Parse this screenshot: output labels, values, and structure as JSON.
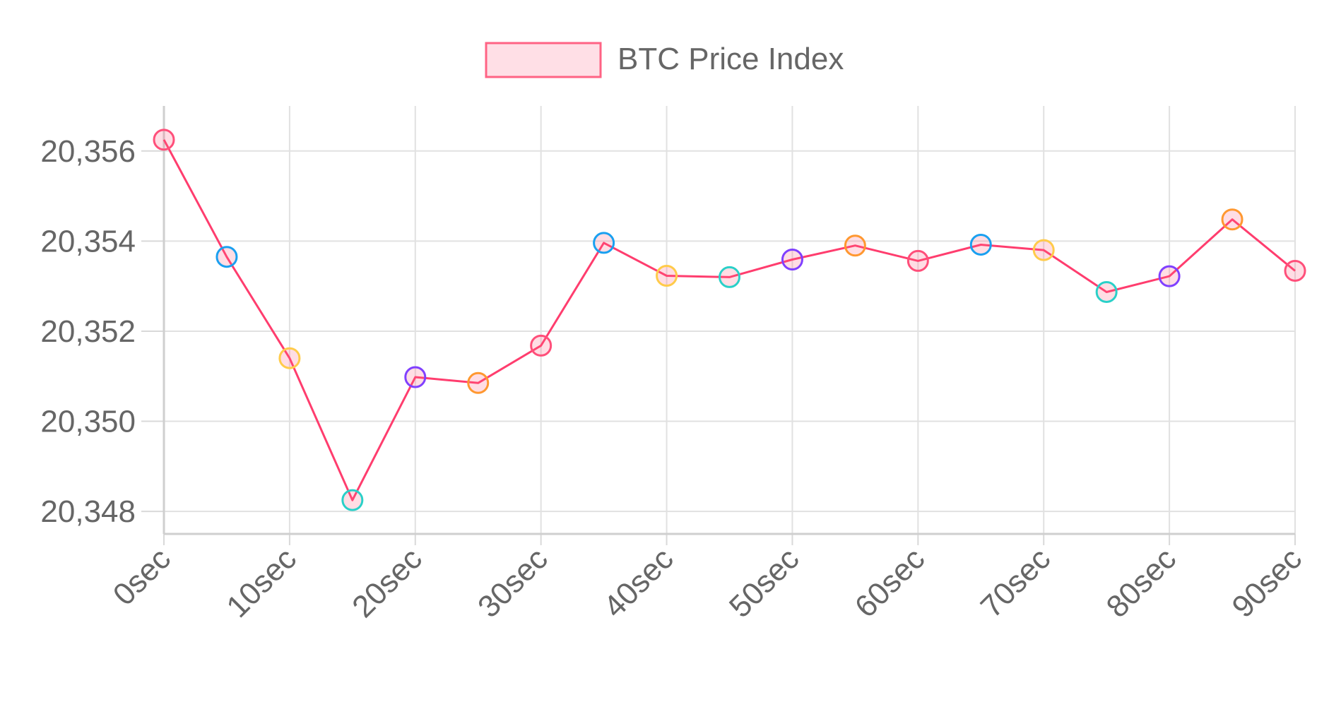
{
  "chart_data": {
    "type": "line",
    "legend": {
      "position": "top",
      "label": "BTC Price Index"
    },
    "x_tick_labels": [
      "0sec",
      "10sec",
      "20sec",
      "30sec",
      "40sec",
      "50sec",
      "60sec",
      "70sec",
      "80sec",
      "90sec"
    ],
    "y_tick_labels": [
      "20,356",
      "20,354",
      "20,352",
      "20,350",
      "20,348"
    ],
    "y_ticks": [
      20356,
      20354,
      20352,
      20350,
      20348
    ],
    "xlim": [
      0,
      90
    ],
    "ylim": [
      20347.5,
      20357
    ],
    "grid": true,
    "series": [
      {
        "name": "BTC Price Index",
        "line_color": "#ff3d6e",
        "x": [
          0,
          5,
          10,
          15,
          20,
          25,
          30,
          35,
          40,
          45,
          50,
          55,
          60,
          65,
          70,
          75,
          80,
          85,
          90
        ],
        "y": [
          20356.25,
          20353.65,
          20351.4,
          20348.25,
          20350.98,
          20350.85,
          20351.68,
          20353.96,
          20353.23,
          20353.2,
          20353.59,
          20353.9,
          20353.56,
          20353.92,
          20353.8,
          20352.87,
          20353.22,
          20354.48,
          20353.34
        ],
        "point_border_colors": [
          "#ff4f7a",
          "#1aa0f0",
          "#ffcb4a",
          "#2ad0c8",
          "#8040ff",
          "#ff9830",
          "#ff4f7a",
          "#1aa0f0",
          "#ffcb4a",
          "#2ad0c8",
          "#8040ff",
          "#ff9830",
          "#ff4f7a",
          "#1aa0f0",
          "#ffcb4a",
          "#2ad0c8",
          "#8040ff",
          "#ff9830",
          "#ff4f7a"
        ]
      }
    ]
  }
}
